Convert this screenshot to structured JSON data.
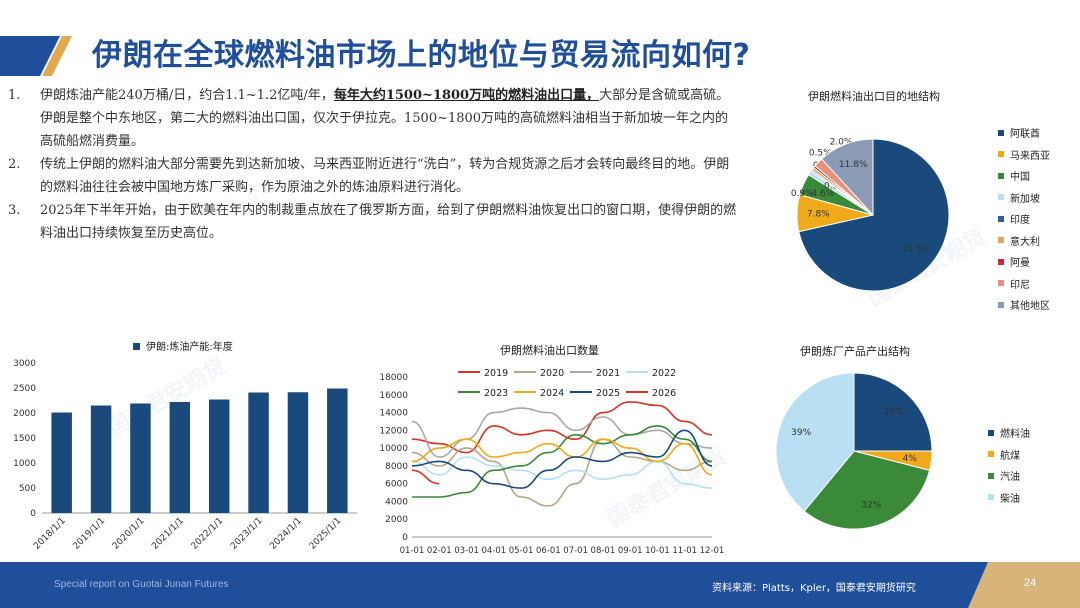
{
  "title": "伊朗在全球燃料油市场上的地位与贸易流向如何?",
  "bullets": [
    {
      "num": "1.",
      "pre": "伊朗炼油产能240万桶/日，约合1.1~1.2亿吨/年，",
      "bold": "每年大约1500~1800万吨的燃料油出口量，",
      "post": "大部分是含硫或高硫。伊朗是整个中东地区，第二大的燃料油出口国，仅次于伊拉克。1500~1800万吨的高硫燃料油相当于新加坡一年之内的高硫船燃消费量。"
    },
    {
      "num": "2.",
      "text": "传统上伊朗的燃料油大部分需要先到达新加坡、马来西亚附近进行“洗白”，转为合规货源之后才会转向最终目的地。伊朗的燃料油往往会被中国地方炼厂采购，作为原油之外的炼油原料进行消化。"
    },
    {
      "num": "3.",
      "text": "2025年下半年开始，由于欧美在年内的制裁重点放在了俄罗斯方面，给到了伊朗燃料油恢复出口的窗口期，使得伊朗的燃料油出口持续恢复至历史高位。"
    }
  ],
  "watermark": "国泰君安期货",
  "footer": {
    "left": "Special report on Guotai Junan Futures",
    "source": "资料来源：Platts，Kpler，国泰君安期货研究",
    "page": "24"
  },
  "chart_data": [
    {
      "type": "pie",
      "title": "伊朗燃料油出口目的地结构",
      "categories": [
        "阿联酋",
        "马来西亚",
        "中国",
        "新加坡",
        "印度",
        "意大利",
        "阿曼",
        "印尼",
        "其他地区"
      ],
      "values": [
        71.5,
        7.8,
        4.6,
        0.9,
        0.3,
        0.6,
        0.5,
        2.0,
        11.8
      ],
      "labels": [
        "71.5%",
        "7.8%",
        "4.6%",
        "0.9%",
        "0.3%",
        "0.6%",
        "0.5%",
        "2.0%",
        "11.8%"
      ],
      "colors": [
        "#1a4a7c",
        "#f0a91a",
        "#3a8a3a",
        "#b8dff2",
        "#2e5fa0",
        "#e3a45c",
        "#c0303a",
        "#e8907a",
        "#8c9bb5"
      ],
      "legend": "right"
    },
    {
      "type": "bar",
      "title": "",
      "series": [
        {
          "name": "伊朗:炼油产能:年度",
          "values": [
            2010,
            2150,
            2190,
            2220,
            2270,
            2410,
            2415,
            2490
          ]
        }
      ],
      "categories": [
        "2018/1/1",
        "2019/1/1",
        "2020/1/1",
        "2021/1/1",
        "2022/1/1",
        "2023/1/1",
        "2024/1/1",
        "2025/1/1"
      ],
      "yticks": [
        "0",
        "500",
        "1000",
        "1500",
        "2000",
        "2500",
        "3000"
      ],
      "ylim": [
        0,
        3000
      ],
      "color": "#1a4a7c",
      "legend": "top"
    },
    {
      "type": "line",
      "title": "伊朗燃料油出口数量",
      "categories": [
        "01-01",
        "02-01",
        "03-01",
        "04-01",
        "05-01",
        "06-01",
        "07-01",
        "08-01",
        "09-01",
        "10-01",
        "11-01",
        "12-01"
      ],
      "yticks": [
        "0",
        "2000",
        "4000",
        "6000",
        "8000",
        "10000",
        "12000",
        "14000",
        "16000",
        "18000"
      ],
      "ylim": [
        0,
        18000
      ],
      "series": [
        {
          "name": "2019",
          "color": "#d9342b",
          "values": [
            11000,
            10500,
            9500,
            12500,
            11500,
            12000,
            11000,
            14000,
            15200,
            14800,
            13000,
            11500
          ]
        },
        {
          "name": "2020",
          "color": "#b5a58a",
          "values": [
            9500,
            8000,
            10000,
            8500,
            4500,
            3500,
            6000,
            11000,
            9000,
            8500,
            7500,
            8500
          ]
        },
        {
          "name": "2021",
          "color": "#a8a8a8",
          "values": [
            13000,
            9000,
            11000,
            14000,
            14500,
            14000,
            12000,
            13500,
            11500,
            12000,
            10500,
            10000
          ]
        },
        {
          "name": "2022",
          "color": "#b8dff2",
          "values": [
            8500,
            7000,
            9000,
            8000,
            7500,
            6500,
            7500,
            6500,
            7000,
            8500,
            6000,
            5500
          ]
        },
        {
          "name": "2023",
          "color": "#3a8a3a",
          "values": [
            4500,
            4500,
            5000,
            7500,
            8000,
            9500,
            11500,
            10500,
            11500,
            12500,
            11000,
            8500
          ]
        },
        {
          "name": "2024",
          "color": "#f0a91a",
          "values": [
            8500,
            10000,
            11000,
            9000,
            9500,
            10500,
            9000,
            11000,
            10000,
            8500,
            10500,
            7000
          ]
        },
        {
          "name": "2025",
          "color": "#1a4a7c",
          "values": [
            8000,
            8500,
            7500,
            6000,
            5500,
            7500,
            9000,
            8500,
            9500,
            9000,
            12000,
            8000
          ]
        },
        {
          "name": "2026",
          "color": "#d9342b",
          "values": [
            7500,
            6000,
            null,
            null,
            null,
            null,
            null,
            null,
            null,
            null,
            null,
            null
          ]
        }
      ],
      "legend": "top"
    },
    {
      "type": "pie",
      "title": "伊朗炼厂产品产出结构",
      "categories": [
        "燃料油",
        "航煤",
        "汽油",
        "柴油"
      ],
      "values": [
        25,
        4,
        32,
        39
      ],
      "labels": [
        "25%",
        "4%",
        "32%",
        "39%"
      ],
      "colors": [
        "#1a4a7c",
        "#f0a91a",
        "#3a8a3a",
        "#b8dff2"
      ],
      "legend": "right"
    }
  ]
}
